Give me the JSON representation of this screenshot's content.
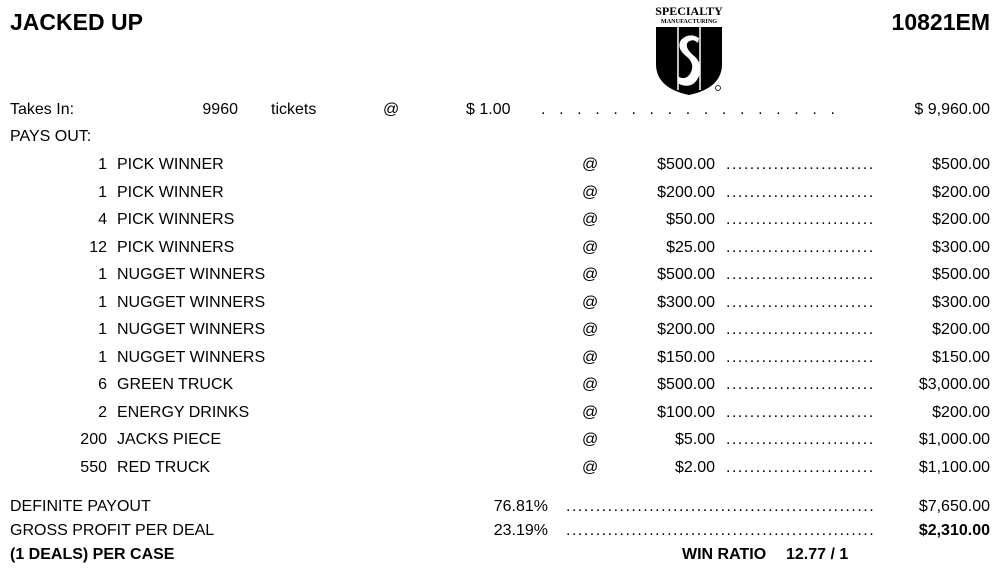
{
  "header": {
    "title": "JACKED UP",
    "form_number": "10821EM",
    "logo_text": "SPECIALTY MANUFACTURING"
  },
  "takes_in": {
    "label": "Takes In:",
    "count": "9960",
    "unit": "tickets",
    "at": "@",
    "price": "$ 1.00",
    "total": "$ 9,960.00"
  },
  "pays_out_label": "PAYS OUT:",
  "payouts": [
    {
      "count": "1",
      "name": "PICK WINNER",
      "at": "@",
      "price": "$500.00",
      "total": "$500.00"
    },
    {
      "count": "1",
      "name": "PICK WINNER",
      "at": "@",
      "price": "$200.00",
      "total": "$200.00"
    },
    {
      "count": "4",
      "name": "PICK WINNERS",
      "at": "@",
      "price": "$50.00",
      "total": "$200.00"
    },
    {
      "count": "12",
      "name": "PICK WINNERS",
      "at": "@",
      "price": "$25.00",
      "total": "$300.00"
    },
    {
      "count": "1",
      "name": "NUGGET WINNERS",
      "at": "@",
      "price": "$500.00",
      "total": "$500.00"
    },
    {
      "count": "1",
      "name": "NUGGET WINNERS",
      "at": "@",
      "price": "$300.00",
      "total": "$300.00"
    },
    {
      "count": "1",
      "name": "NUGGET WINNERS",
      "at": "@",
      "price": "$200.00",
      "total": "$200.00"
    },
    {
      "count": "1",
      "name": "NUGGET WINNERS",
      "at": "@",
      "price": "$150.00",
      "total": "$150.00"
    },
    {
      "count": "6",
      "name": "GREEN TRUCK",
      "at": "@",
      "price": "$500.00",
      "total": "$3,000.00"
    },
    {
      "count": "2",
      "name": "ENERGY DRINKS",
      "at": "@",
      "price": "$100.00",
      "total": "$200.00"
    },
    {
      "count": "200",
      "name": "JACKS PIECE",
      "at": "@",
      "price": "$5.00",
      "total": "$1,000.00"
    },
    {
      "count": "550",
      "name": "RED TRUCK",
      "at": "@",
      "price": "$2.00",
      "total": "$1,100.00"
    }
  ],
  "summary": {
    "definite_payout": {
      "label": "DEFINITE PAYOUT",
      "percent": "76.81%",
      "total": "$7,650.00"
    },
    "gross_profit": {
      "label": "GROSS PROFIT PER DEAL",
      "percent": "23.19%",
      "total": "$2,310.00"
    },
    "per_case": "(1 DEALS) PER CASE",
    "win_ratio_label": "WIN RATIO",
    "win_ratio": "12.77 / 1"
  }
}
